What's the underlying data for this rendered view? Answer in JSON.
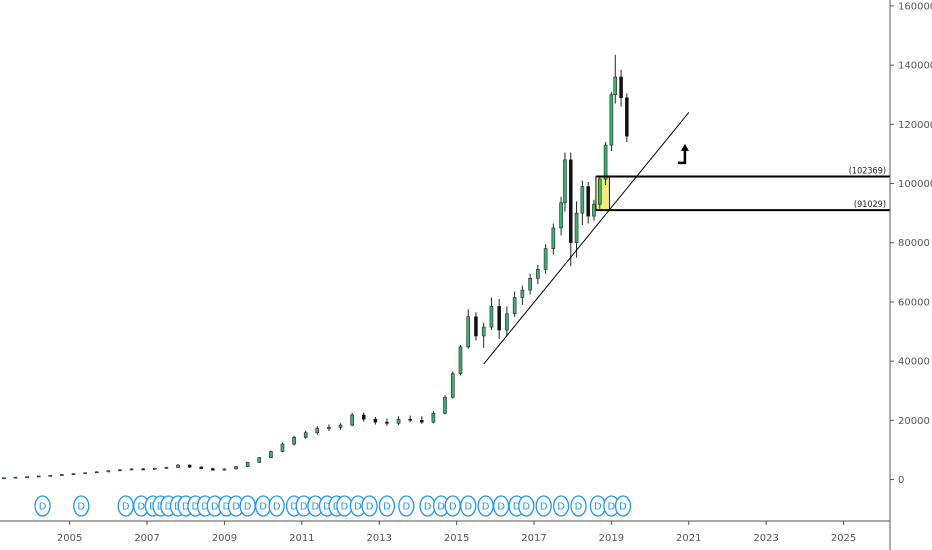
{
  "chart_data": {
    "type": "candlestick",
    "x_axis": {
      "range": [
        2003.2,
        2026.2
      ],
      "ticks": [
        "2005",
        "2007",
        "2009",
        "2011",
        "2013",
        "2015",
        "2017",
        "2019",
        "2021",
        "2023",
        "2025"
      ]
    },
    "y_axis": {
      "range": [
        -14000,
        162000
      ],
      "ticks": [
        "0",
        "20000",
        "40000",
        "60000",
        "80000",
        "100000",
        "120000",
        "140000",
        "160000"
      ],
      "position": "right"
    },
    "ohlc": [
      [
        2003.3,
        400,
        700,
        300,
        600
      ],
      [
        2003.6,
        600,
        900,
        500,
        800
      ],
      [
        2003.9,
        800,
        1100,
        700,
        1000
      ],
      [
        2004.2,
        1000,
        1300,
        900,
        1200
      ],
      [
        2004.5,
        1200,
        1500,
        1100,
        1400
      ],
      [
        2004.8,
        1400,
        1800,
        1300,
        1700
      ],
      [
        2005.1,
        1700,
        2100,
        1600,
        2000
      ],
      [
        2005.4,
        2000,
        2400,
        1900,
        2300
      ],
      [
        2005.7,
        2300,
        2800,
        2200,
        2600
      ],
      [
        2006.0,
        2600,
        3100,
        2500,
        3000
      ],
      [
        2006.3,
        3000,
        3500,
        2800,
        3300
      ],
      [
        2006.6,
        3300,
        3800,
        3100,
        3600
      ],
      [
        2006.9,
        3600,
        3900,
        3300,
        3500
      ],
      [
        2007.2,
        3500,
        4000,
        3300,
        3800
      ],
      [
        2007.5,
        3800,
        4300,
        3600,
        4100
      ],
      [
        2007.8,
        4100,
        5200,
        3900,
        4900
      ],
      [
        2008.1,
        4900,
        5100,
        3900,
        4200
      ],
      [
        2008.4,
        4200,
        4500,
        3500,
        3700
      ],
      [
        2008.7,
        3700,
        4000,
        3000,
        3200
      ],
      [
        2009.0,
        3200,
        3800,
        3000,
        3600
      ],
      [
        2009.3,
        3600,
        4600,
        3400,
        4400
      ],
      [
        2009.6,
        4400,
        6000,
        4200,
        5800
      ],
      [
        2009.9,
        5800,
        7600,
        5600,
        7400
      ],
      [
        2010.2,
        7400,
        9800,
        7200,
        9500
      ],
      [
        2010.5,
        9500,
        12500,
        9200,
        12000
      ],
      [
        2010.8,
        12000,
        14800,
        11500,
        14300
      ],
      [
        2011.1,
        14300,
        16500,
        13800,
        15800
      ],
      [
        2011.4,
        15800,
        18000,
        15200,
        17200
      ],
      [
        2011.7,
        17200,
        18600,
        16400,
        17600
      ],
      [
        2012.0,
        17600,
        19000,
        16800,
        18400
      ],
      [
        2012.3,
        18400,
        22500,
        18000,
        21800
      ],
      [
        2012.6,
        21800,
        22600,
        19600,
        20400
      ],
      [
        2012.9,
        20400,
        21200,
        18600,
        19400
      ],
      [
        2013.2,
        19400,
        20600,
        18200,
        19000
      ],
      [
        2013.5,
        19000,
        21400,
        18400,
        20400
      ],
      [
        2013.8,
        20400,
        21600,
        19400,
        20000
      ],
      [
        2014.1,
        20000,
        21400,
        18800,
        19400
      ],
      [
        2014.4,
        19400,
        23200,
        19000,
        22400
      ],
      [
        2014.7,
        22400,
        28500,
        22000,
        27800
      ],
      [
        2014.9,
        27800,
        36500,
        27400,
        35800
      ],
      [
        2015.1,
        35800,
        45500,
        35200,
        44800
      ],
      [
        2015.3,
        44800,
        57500,
        44200,
        55000
      ],
      [
        2015.5,
        55000,
        56500,
        47000,
        48500
      ],
      [
        2015.7,
        48500,
        53000,
        44500,
        51500
      ],
      [
        2015.9,
        51500,
        61500,
        50500,
        58500
      ],
      [
        2016.1,
        58500,
        61000,
        47500,
        50500
      ],
      [
        2016.3,
        50500,
        58500,
        48500,
        56000
      ],
      [
        2016.5,
        56000,
        63500,
        55000,
        61500
      ],
      [
        2016.7,
        61500,
        65500,
        59000,
        64000
      ],
      [
        2016.9,
        64000,
        69500,
        62500,
        68000
      ],
      [
        2017.1,
        68000,
        72500,
        66000,
        71000
      ],
      [
        2017.3,
        71000,
        79500,
        69500,
        78000
      ],
      [
        2017.5,
        78000,
        86500,
        76000,
        85000
      ],
      [
        2017.7,
        85000,
        95500,
        82500,
        93500
      ],
      [
        2017.8,
        93500,
        110500,
        90500,
        108000
      ],
      [
        2017.95,
        108000,
        110500,
        72000,
        80000
      ],
      [
        2018.1,
        80000,
        94000,
        75000,
        90000
      ],
      [
        2018.25,
        90000,
        101000,
        86000,
        99000
      ],
      [
        2018.4,
        99000,
        100500,
        86500,
        89000
      ],
      [
        2018.55,
        89000,
        94500,
        87500,
        93000
      ],
      [
        2018.7,
        93000,
        102500,
        91500,
        101500
      ],
      [
        2018.85,
        101500,
        114000,
        99500,
        113000
      ],
      [
        2019.0,
        113000,
        131000,
        111000,
        130000
      ],
      [
        2019.1,
        130000,
        143500,
        127000,
        136000
      ],
      [
        2019.25,
        136000,
        138500,
        126000,
        129000
      ],
      [
        2019.4,
        129000,
        130500,
        114000,
        116000
      ]
    ],
    "levels": [
      {
        "label": "(102369)",
        "value": 102369
      },
      {
        "label": "(91029)",
        "value": 91029
      }
    ],
    "zone": {
      "x": [
        2018.6,
        2018.95
      ],
      "y": [
        91029,
        102369
      ],
      "color": "#f2ec7a"
    },
    "trendline": {
      "from": [
        2015.7,
        39000
      ],
      "to": [
        2021.0,
        124000
      ]
    },
    "arrow": {
      "x": 2020.9,
      "y": 107000
    },
    "dividend_markers": {
      "label": "D",
      "x": [
        2004.3,
        2005.3,
        2006.45,
        2006.85,
        2007.15,
        2007.35,
        2007.55,
        2007.8,
        2008.0,
        2008.25,
        2008.5,
        2008.75,
        2009.05,
        2009.3,
        2009.6,
        2010.0,
        2010.35,
        2010.8,
        2011.05,
        2011.35,
        2011.65,
        2011.9,
        2012.1,
        2012.45,
        2012.75,
        2013.2,
        2013.7,
        2014.25,
        2014.6,
        2014.9,
        2015.3,
        2015.75,
        2016.15,
        2016.55,
        2016.8,
        2017.25,
        2017.7,
        2018.15,
        2018.65,
        2019.0,
        2019.3
      ]
    },
    "colors": {
      "up": "#3bb273",
      "down": "#111111",
      "level": "#000000",
      "marker": "#2196f3",
      "axis": "#555555"
    }
  }
}
